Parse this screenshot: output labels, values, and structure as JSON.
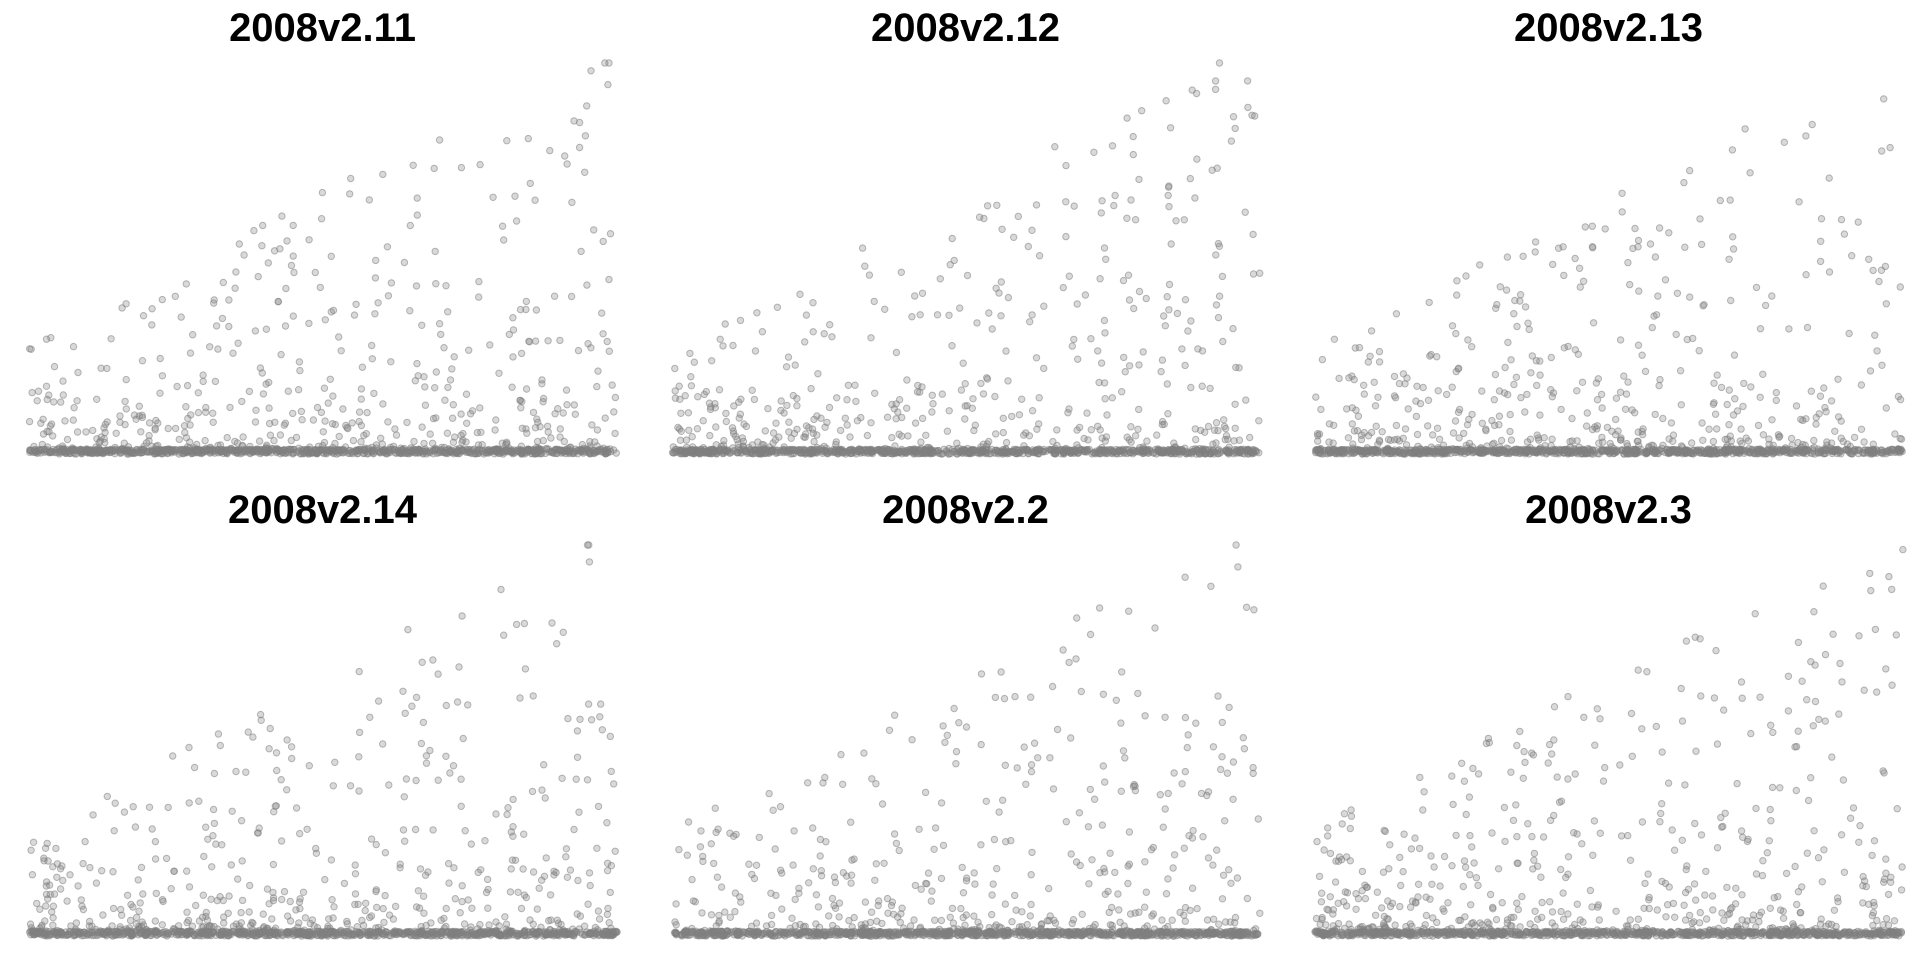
{
  "chart_data": [
    {
      "type": "scatter",
      "title": "2008v2.11",
      "series": [
        {
          "seed": 11,
          "count": 1400,
          "tail": 0.55
        }
      ],
      "xlim": [
        0,
        1
      ],
      "ylim": [
        0,
        1
      ],
      "grid": false,
      "axes": false,
      "point_color": "#808080"
    },
    {
      "type": "scatter",
      "title": "2008v2.12",
      "series": [
        {
          "seed": 12,
          "count": 1400,
          "tail": 0.6
        }
      ],
      "xlim": [
        0,
        1
      ],
      "ylim": [
        0,
        1
      ],
      "grid": false,
      "axes": false,
      "point_color": "#808080"
    },
    {
      "type": "scatter",
      "title": "2008v2.13",
      "series": [
        {
          "seed": 13,
          "count": 1400,
          "tail": 0.6
        }
      ],
      "xlim": [
        0,
        1
      ],
      "ylim": [
        0,
        1
      ],
      "grid": false,
      "axes": false,
      "point_color": "#808080"
    },
    {
      "type": "scatter",
      "title": "2008v2.14",
      "series": [
        {
          "seed": 14,
          "count": 1400,
          "tail": 0.55
        }
      ],
      "xlim": [
        0,
        1
      ],
      "ylim": [
        0,
        1
      ],
      "grid": false,
      "axes": false,
      "point_color": "#808080"
    },
    {
      "type": "scatter",
      "title": "2008v2.2",
      "series": [
        {
          "seed": 22,
          "count": 1400,
          "tail": 0.65
        }
      ],
      "xlim": [
        0,
        1
      ],
      "ylim": [
        0,
        1
      ],
      "grid": false,
      "axes": false,
      "point_color": "#808080"
    },
    {
      "type": "scatter",
      "title": "2008v2.3",
      "series": [
        {
          "seed": 23,
          "count": 1400,
          "tail": 0.55
        }
      ],
      "xlim": [
        0,
        1
      ],
      "ylim": [
        0,
        1
      ],
      "grid": false,
      "axes": false,
      "point_color": "#808080"
    }
  ]
}
